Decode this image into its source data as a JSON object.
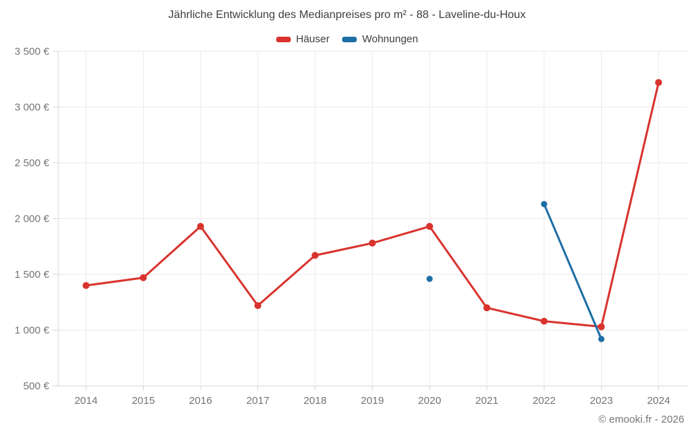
{
  "title": "Jährliche Entwicklung des Medianpreises pro m² - 88 - Laveline-du-Houx",
  "footer": "© emooki.fr - 2026",
  "legend": {
    "items": [
      {
        "label": "Häuser",
        "color": "#d9332d"
      },
      {
        "label": "Wohnungen",
        "color": "#1d6fa5"
      }
    ]
  },
  "chart_data": {
    "type": "line",
    "title": "Jährliche Entwicklung des Medianpreises pro m² - 88 - Laveline-du-Houx",
    "categories": [
      2014,
      2015,
      2016,
      2017,
      2018,
      2019,
      2020,
      2021,
      2022,
      2023,
      2024
    ],
    "series": [
      {
        "name": "Häuser",
        "id": "haeuser",
        "color": "#d9332d",
        "point_radius": 5,
        "values": [
          1400,
          1470,
          1930,
          1220,
          1670,
          1780,
          1930,
          1200,
          1080,
          1030,
          3220
        ]
      },
      {
        "name": "Wohnungen",
        "id": "wohnungen",
        "color": "#1d6fa5",
        "point_radius": 4.5,
        "values": [
          null,
          null,
          null,
          null,
          null,
          null,
          1460,
          null,
          2130,
          920,
          null
        ]
      }
    ],
    "ylim": [
      500,
      3500
    ],
    "yticks": [
      500,
      1000,
      1500,
      2000,
      2500,
      3000,
      3500
    ],
    "ytick_labels": [
      "500 €",
      "1 000 €",
      "1 500 €",
      "2 000 €",
      "2 500 €",
      "3 000 €",
      "3 500 €"
    ],
    "currency": "€",
    "grid": true,
    "legend_position": "top",
    "xlabel": "",
    "ylabel": ""
  }
}
